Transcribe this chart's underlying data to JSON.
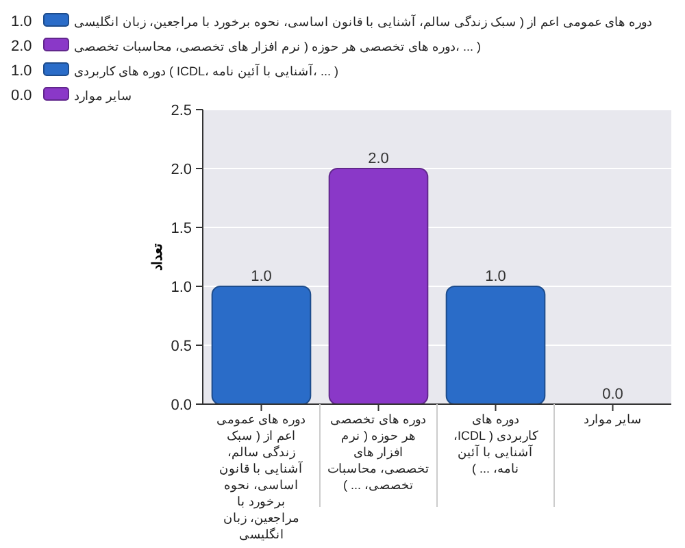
{
  "chart_data": {
    "type": "bar",
    "ylabel": "تعداد",
    "categories": [
      "دوره های عمومی اعم از ( سبک زندگی سالم، آشنایی با قانون اساسی، نحوه برخورد با مراجعین، زبان انگلیسی",
      "دوره های تخصصی هر حوزه ( نرم افزار های تخصصی، محاسبات تخصصی، ... )",
      "دوره های کاربردی ( ICDL، آشنایی با آئین نامه، ... )",
      "سایر موارد"
    ],
    "series": [
      {
        "name": "دوره های عمومی اعم از ( سبک زندگی سالم، آشنایی با قانون اساسی، نحوه برخورد با مراجعین، زبان انگلیسی",
        "color": "#2a6cc8",
        "values": [
          1.0,
          null,
          null,
          null
        ],
        "value_labels": [
          "1.0",
          null,
          null,
          null
        ]
      },
      {
        "name": "( ... ،دوره های تخصصی هر حوزه ( نرم افزار های تخصصی، محاسبات تخصصی",
        "color": "#8a38c8",
        "values": [
          null,
          2.0,
          null,
          null
        ],
        "value_labels": [
          null,
          "2.0",
          null,
          null
        ]
      },
      {
        "name": "( ... ،آشنایی با آئین نامه ،ICDL ) دوره های کاربردی",
        "color": "#2a6cc8",
        "values": [
          null,
          null,
          1.0,
          null
        ],
        "value_labels": [
          null,
          null,
          "1.0",
          null
        ]
      },
      {
        "name": "سایر موارد",
        "color": "#8a38c8",
        "values": [
          null,
          null,
          null,
          0.0
        ],
        "value_labels": [
          null,
          null,
          null,
          "0.0"
        ]
      }
    ],
    "ylim": [
      0,
      2.5
    ],
    "yticks": [
      {
        "value": 0,
        "label": "0.0"
      },
      {
        "value": 0.5,
        "label": "0.5"
      },
      {
        "value": 1,
        "label": "1.0"
      },
      {
        "value": 1.5,
        "label": "1.5"
      },
      {
        "value": 2,
        "label": "2.0"
      },
      {
        "value": 2.5,
        "label": "2.5"
      }
    ],
    "grid": "y",
    "legend": "top"
  }
}
